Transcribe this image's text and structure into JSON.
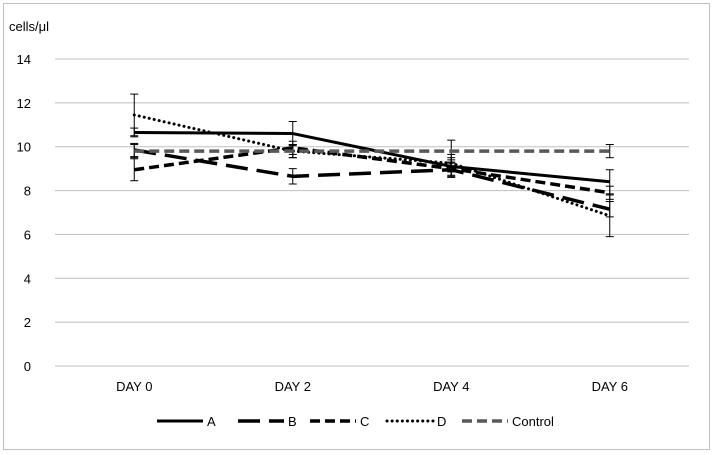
{
  "chart_data": {
    "type": "line",
    "title": "",
    "xlabel": "",
    "ylabel": "cells/μl",
    "categories": [
      "DAY 0",
      "DAY 2",
      "DAY 4",
      "DAY 6"
    ],
    "ylim": [
      0,
      14
    ],
    "yticks": [
      0,
      2,
      4,
      6,
      8,
      10,
      12,
      14
    ],
    "grid": true,
    "legend": "bottom",
    "series": [
      {
        "name": "A",
        "values": [
          10.65,
          10.6,
          9.1,
          8.4
        ],
        "error": [
          0.2,
          0.55,
          0.4,
          0.55
        ],
        "dash": "solid",
        "color": "#000000"
      },
      {
        "name": "B",
        "values": [
          9.85,
          8.65,
          8.95,
          7.15
        ],
        "error": [
          0.3,
          0.35,
          0.3,
          0.35
        ],
        "dash": "longdash",
        "color": "#000000"
      },
      {
        "name": "C",
        "values": [
          8.95,
          9.95,
          9.0,
          7.9
        ],
        "error": [
          0.5,
          0.3,
          0.4,
          0.3
        ],
        "dash": "dash",
        "color": "#000000"
      },
      {
        "name": "D",
        "values": [
          11.45,
          9.8,
          9.25,
          6.85
        ],
        "error": [
          0.95,
          0.3,
          0.4,
          0.95
        ],
        "dash": "dot",
        "color": "#000000"
      },
      {
        "name": "Control",
        "values": [
          9.8,
          9.8,
          9.8,
          9.8
        ],
        "error": [
          0.3,
          0.3,
          0.5,
          0.3
        ],
        "dash": "dash",
        "color": "#595959"
      }
    ]
  }
}
